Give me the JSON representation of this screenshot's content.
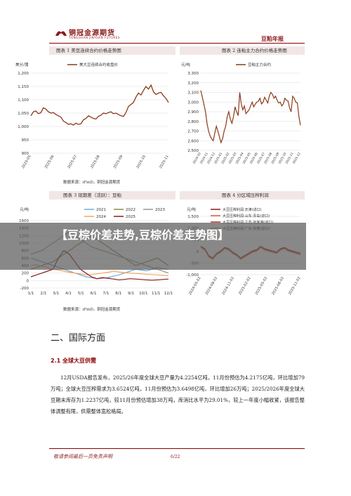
{
  "header": {
    "logo_cn": "铜冠金源期货",
    "logo_en": "TONGGUAN JINYUAN FUTURES",
    "report_type": "豆粕年报"
  },
  "charts": [
    {
      "title": "图表 1  美豆连续合约价格走势图",
      "source": "数据来源：iFinD，铜冠金源期货",
      "unit": "美分/蒲",
      "legend": "美大豆连续合约收盘价",
      "chart_data": {
        "type": "line",
        "ylim": [
          900,
          1200
        ],
        "yticks": [
          "1,200",
          "1,150",
          "1,100",
          "1,050",
          "1,000",
          "950",
          "900"
        ],
        "xticks": [
          "2025-05",
          "2025-06",
          "2025-07",
          "2025-08",
          "2025-09",
          "2025-10",
          "2025-11"
        ],
        "series": [
          {
            "name": "美大豆连续合约收盘价",
            "color": "#8b3a1a",
            "values": [
              1040,
              1055,
              1058,
              1048,
              1052,
              1070,
              1065,
              1055,
              1050,
              1052,
              1045,
              1040,
              1035,
              1020,
              1015,
              1008,
              1010,
              1005,
              1012,
              1008,
              1010,
              1025,
              1030,
              1040,
              1035,
              1030,
              1028,
              1038,
              1042,
              1050,
              1048,
              1052,
              1055,
              1048,
              1050,
              1045,
              1040,
              1038,
              1052,
              1075,
              1082,
              1090,
              1110,
              1125,
              1118,
              1135,
              1150,
              1140,
              1155,
              1130,
              1120,
              1125,
              1128,
              1115,
              1105,
              1090
            ]
          }
        ]
      }
    },
    {
      "title": "图表 2  连粕主力合约价格走势图",
      "source": "",
      "unit": "元/吨",
      "legend": "豆粕主力合约",
      "chart_data": {
        "type": "line",
        "ylim": [
          2500,
          3300
        ],
        "yticks": [
          "3,300",
          "3,200",
          "3,100",
          "3,000",
          "2,900",
          "2,800",
          "2,700",
          "2,600",
          "2,500"
        ],
        "xticks": [
          "2024-10",
          "2024-11",
          "2024-12",
          "2025-01",
          "2025-02",
          "2025-03",
          "2025-04",
          "2025-05",
          "2025-06",
          "2025-07",
          "2025-08",
          "2025-09",
          "2025-10",
          "2025-11",
          "2025-12"
        ],
        "series": [
          {
            "name": "豆粕主力合约",
            "color": "#8b3a1a",
            "values": [
              3120,
              3050,
              2980,
              2900,
              2780,
              2700,
              2650,
              2620,
              2600,
              2680,
              2750,
              2700,
              2640,
              2580,
              2620,
              2700,
              2750,
              2850,
              2900,
              2820,
              2780,
              2850,
              2950,
              2900,
              2860,
              3100,
              2980,
              2920,
              2960,
              2880,
              2900,
              2920,
              2960,
              3000,
              2950,
              2980,
              3000,
              3010,
              3040,
              2980,
              3000,
              3050,
              3020,
              2990,
              3060,
              3100,
              3080,
              3040,
              3060,
              3020,
              2990,
              3000,
              2960,
              2980,
              3040,
              3020,
              3010,
              2940,
              2900,
              3060,
              3040,
              3000,
              2990,
              2850,
              2760
            ]
          }
        ]
      }
    },
    {
      "title": "图表 3  现期差（活跃）：豆粕",
      "source": "数据来源：iFinD，铜冠金源期货",
      "unit": "元/吨",
      "chart_data": {
        "type": "line",
        "ylim": [
          -200,
          1600
        ],
        "yticks": [
          "1600",
          "1400",
          "1200",
          "1000",
          "800",
          "600",
          "400",
          "200",
          "0",
          "-200"
        ],
        "xticks": [
          "1/1",
          "2/1",
          "3/1",
          "4/1",
          "5/1",
          "6/1",
          "7/1",
          "8/1",
          "9/1",
          "10/1",
          "11/1",
          "12/1"
        ],
        "series": [
          {
            "name": "2021",
            "color": "#6baed6",
            "values": [
              600,
              550,
              500,
              450,
              400,
              350,
              300,
              250,
              200,
              150,
              100,
              80,
              50,
              60,
              80,
              120,
              150,
              200,
              250,
              300,
              280,
              260,
              300,
              350,
              320,
              300
            ]
          },
          {
            "name": "2022",
            "color": "#8a8a4a",
            "values": [
              300,
              350,
              400,
              450,
              500,
              600,
              700,
              800,
              900,
              1000,
              1100,
              1200,
              1100,
              1000,
              900,
              800,
              700,
              600,
              500,
              400,
              450,
              500,
              550,
              600,
              500,
              400
            ]
          },
          {
            "name": "2023",
            "color": "#999999",
            "values": [
              700,
              750,
              800,
              900,
              1000,
              1100,
              1200,
              1300,
              1200,
              1100,
              1000,
              900,
              850,
              800,
              750,
              700,
              650,
              600,
              550,
              500,
              450,
              400,
              350,
              300,
              250,
              200
            ]
          },
          {
            "name": "2024",
            "color": "#f4a460",
            "values": [
              400,
              420,
              380,
              350,
              300,
              280,
              250,
              220,
              200,
              180,
              150,
              160,
              180,
              200,
              220,
              250,
              230,
              210,
              200,
              190,
              180,
              170,
              160,
              150,
              140,
              130
            ]
          },
          {
            "name": "2025",
            "color": "#8b1a1a",
            "values": [
              100,
              150,
              200,
              250,
              300,
              600,
              800,
              700,
              500,
              300,
              200,
              100,
              50,
              80,
              60,
              40,
              20,
              30,
              50,
              40,
              30,
              20,
              10,
              20,
              30,
              40
            ]
          }
        ]
      }
    },
    {
      "title": "图表 4  分区域压榨利润",
      "source": "",
      "unit": "元/吨",
      "chart_data": {
        "type": "line",
        "ylim": [
          -1000,
          1500
        ],
        "yticks": [
          "1,500",
          "1,000",
          "500",
          "0",
          "-500",
          "-1,000"
        ],
        "xticks": [
          "2024-05-02",
          "2024-08-02",
          "2024-11-02",
          "2025-02-02",
          "2025-05-02",
          "2025-08-02",
          "2025-11-02"
        ],
        "series": [
          {
            "name": "大豆压榨利润:天津(进口)",
            "color": "#8b1a1a",
            "values": [
              200,
              100,
              -200,
              -300,
              -100,
              0,
              150,
              100,
              -50,
              -150,
              -300,
              -200,
              -100,
              0,
              50,
              200,
              100,
              50,
              0,
              -50,
              100,
              150,
              50,
              0,
              -50,
              -100
            ]
          },
          {
            "name": "大豆压榨利润:山东:青岛(进口)",
            "color": "#c86432",
            "values": [
              180,
              80,
              -220,
              -320,
              -120,
              -20,
              130,
              80,
              -70,
              -170,
              -320,
              -220,
              -120,
              -20,
              30,
              180,
              80,
              30,
              -20,
              -70,
              80,
              130,
              30,
              -20,
              -70,
              -120
            ]
          },
          {
            "name": "大豆压榨利润:江苏:张家港(进口)",
            "color": "#b03030",
            "values": [
              220,
              120,
              -180,
              -280,
              -80,
              20,
              170,
              120,
              -30,
              -130,
              -280,
              -180,
              -80,
              20,
              70,
              220,
              120,
              70,
              20,
              -30,
              120,
              170,
              70,
              20,
              -30,
              -80
            ]
          },
          {
            "name": "大豆压榨利润:广东:东莞(进口)",
            "color": "#d08050",
            "values": [
              160,
              60,
              -240,
              -340,
              -140,
              -40,
              110,
              60,
              -90,
              -190,
              -340,
              -240,
              -140,
              -40,
              10,
              160,
              60,
              10,
              -40,
              -90,
              60,
              110,
              10,
              -40,
              -90,
              -140
            ]
          }
        ]
      }
    }
  ],
  "overlay": {
    "text": "【豆棕价差走势,豆棕价差走势图】"
  },
  "section": {
    "heading": "二、国际方面",
    "subheading": "2.1 全球大豆供需"
  },
  "paragraph": "12月USDA报告发布，2025/26年度全球大豆产量为4.2254亿吨，11月份预估为4.2175亿吨，环比增加79万吨；全球大豆压榨需求为3.6524亿吨，11月份预估为3.6498亿吨，环比增加26万吨；2025/2026年度全球大豆期末库存为1.2237亿吨，较11月份预估增加38万吨，库消比水平为29.01%，较上一年度小幅收紧，该报告整体调整有限，供需整体宽松格局。",
  "footer": {
    "disclaimer": "敬请参阅最后一页免责声明",
    "page": "6/22"
  }
}
